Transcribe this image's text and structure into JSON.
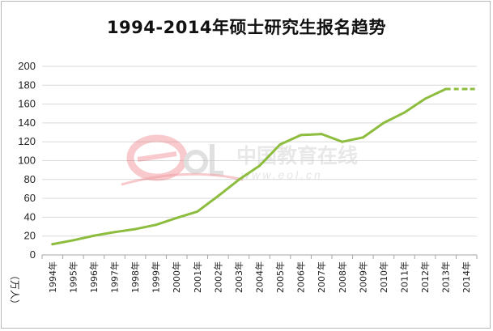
{
  "chart_data": {
    "type": "line",
    "title": "1994-2014年硕士研究生报名趋势",
    "ylabel": "（万人）",
    "xlabel": "",
    "ylim": [
      0,
      200
    ],
    "yticks": [
      0,
      20,
      40,
      60,
      80,
      100,
      120,
      140,
      160,
      180,
      200
    ],
    "grid": true,
    "categories": [
      "1994年",
      "1995年",
      "1996年",
      "1997年",
      "1998年",
      "1999年",
      "2000年",
      "2001年",
      "2002年",
      "2003年",
      "2004年",
      "2005年",
      "2006年",
      "2007年",
      "2008年",
      "2009年",
      "2010年",
      "2011年",
      "2012年",
      "2013年",
      "2014年"
    ],
    "series": [
      {
        "values": [
          11.4,
          15.5,
          20.4,
          24.2,
          27.4,
          31.9,
          39.2,
          46.0,
          62.4,
          79.7,
          94.5,
          117.2,
          127.1,
          128.2,
          120.0,
          124.6,
          140.0,
          151.0,
          165.6,
          176.0,
          176.0
        ]
      }
    ],
    "dashed_from_index": 19,
    "colors": {
      "line": "#8dbd3e",
      "grid": "#d9d9d9",
      "axis": "#a6a6a6"
    }
  },
  "watermark": {
    "logo_text": "eol",
    "cn_name": "中国教育在线",
    "url": "www.eol.cn",
    "colors": {
      "logo_red": "#e8505b",
      "logo_gray": "#c8c8c8"
    }
  }
}
